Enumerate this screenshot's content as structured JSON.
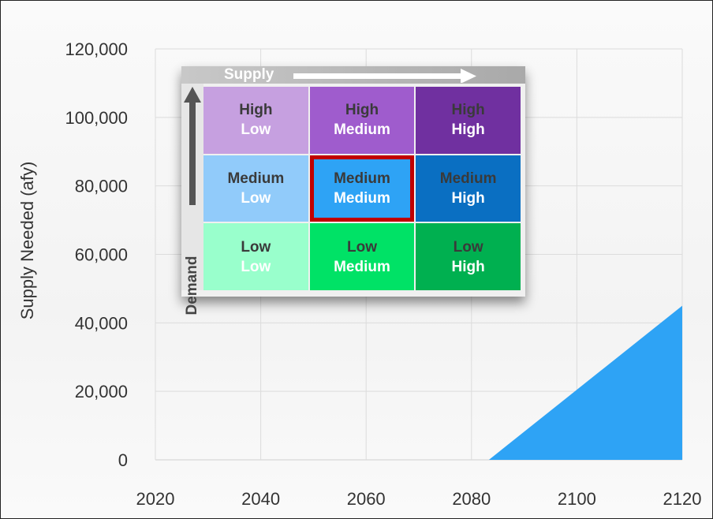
{
  "chart_data": {
    "type": "area",
    "title": "",
    "xlabel": "",
    "ylabel": "Supply Needed (afy)",
    "x_ticks": [
      "2020",
      "2040",
      "2060",
      "2080",
      "2100",
      "2120"
    ],
    "y_ticks": [
      "0",
      "20,000",
      "40,000",
      "60,000",
      "80,000",
      "100,000",
      "120,000"
    ],
    "xlim": [
      2020,
      2120
    ],
    "ylim": [
      0,
      120000
    ],
    "grid": true,
    "series": [
      {
        "x": [
          2083.3,
          2120
        ],
        "y": [
          0,
          45000
        ],
        "color": "#2ea3f5"
      }
    ]
  },
  "matrix": {
    "supply_label": "Supply",
    "demand_label": "Demand",
    "cells": [
      {
        "demand": "High",
        "supply": "Low",
        "color": "#c6a0e0"
      },
      {
        "demand": "High",
        "supply": "Medium",
        "color": "#9f5ccd"
      },
      {
        "demand": "High",
        "supply": "High",
        "color": "#7030a0"
      },
      {
        "demand": "Medium",
        "supply": "Low",
        "color": "#91cbfa"
      },
      {
        "demand": "Medium",
        "supply": "Medium",
        "color": "#2ea3f5"
      },
      {
        "demand": "Medium",
        "supply": "High",
        "color": "#0a6fc2"
      },
      {
        "demand": "Low",
        "supply": "Low",
        "color": "#99ffcc"
      },
      {
        "demand": "Low",
        "supply": "Medium",
        "color": "#00e266"
      },
      {
        "demand": "Low",
        "supply": "High",
        "color": "#00b050"
      }
    ],
    "selected": "Medium / Medium",
    "highlight_color": "#c00000"
  }
}
